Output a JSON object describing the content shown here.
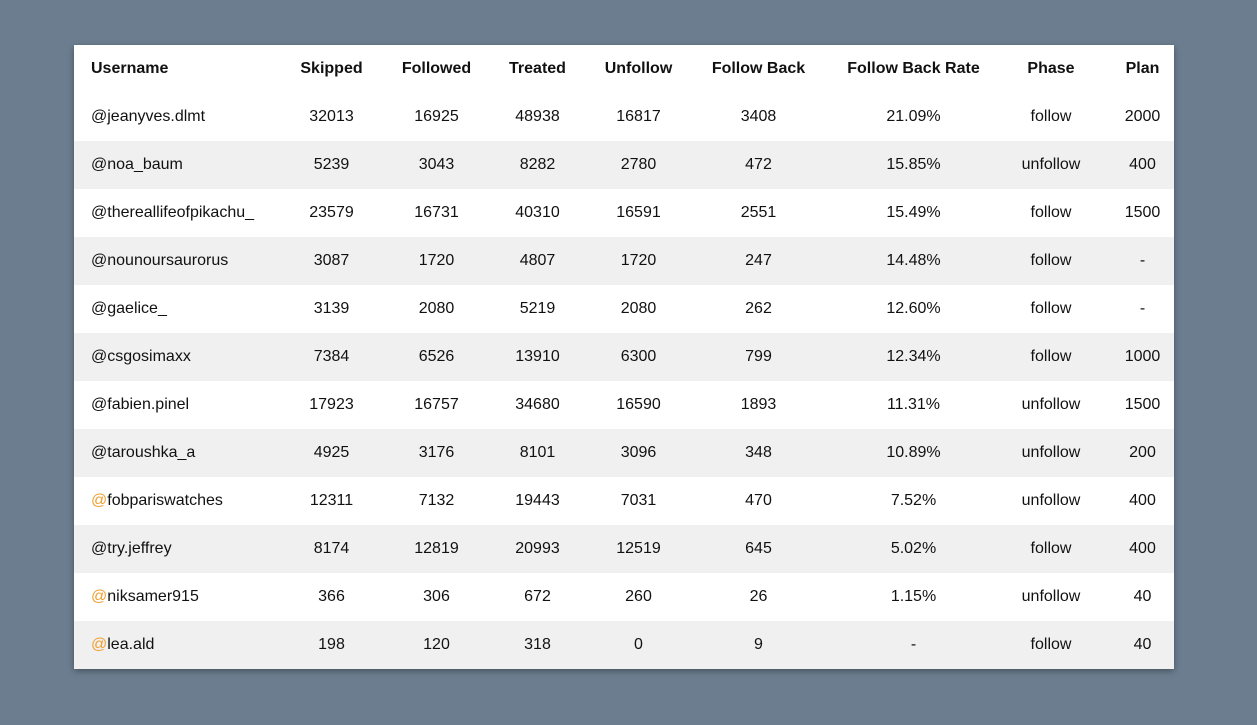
{
  "table": {
    "headers": [
      "Username",
      "Skipped",
      "Followed",
      "Treated",
      "Unfollow",
      "Follow Back",
      "Follow Back Rate",
      "Phase",
      "Plan"
    ],
    "rows": [
      {
        "at": "@",
        "at_color": "#111111",
        "name": "jeanyves.dlmt",
        "skipped": "32013",
        "followed": "16925",
        "treated": "48938",
        "unfollow": "16817",
        "follow_back": "3408",
        "rate": "21.09%",
        "phase": "follow",
        "plan": "2000"
      },
      {
        "at": "@",
        "at_color": "#111111",
        "name": "noa_baum",
        "skipped": "5239",
        "followed": "3043",
        "treated": "8282",
        "unfollow": "2780",
        "follow_back": "472",
        "rate": "15.85%",
        "phase": "unfollow",
        "plan": "400"
      },
      {
        "at": "@",
        "at_color": "#111111",
        "name": "thereallifeofpikachu_",
        "skipped": "23579",
        "followed": "16731",
        "treated": "40310",
        "unfollow": "16591",
        "follow_back": "2551",
        "rate": "15.49%",
        "phase": "follow",
        "plan": "1500"
      },
      {
        "at": "@",
        "at_color": "#111111",
        "name": "nounoursaurorus",
        "skipped": "3087",
        "followed": "1720",
        "treated": "4807",
        "unfollow": "1720",
        "follow_back": "247",
        "rate": "14.48%",
        "phase": "follow",
        "plan": "-"
      },
      {
        "at": "@",
        "at_color": "#111111",
        "name": "gaelice_",
        "skipped": "3139",
        "followed": "2080",
        "treated": "5219",
        "unfollow": "2080",
        "follow_back": "262",
        "rate": "12.60%",
        "phase": "follow",
        "plan": "-"
      },
      {
        "at": "@",
        "at_color": "#111111",
        "name": "csgosimaxx",
        "skipped": "7384",
        "followed": "6526",
        "treated": "13910",
        "unfollow": "6300",
        "follow_back": "799",
        "rate": "12.34%",
        "phase": "follow",
        "plan": "1000"
      },
      {
        "at": "@",
        "at_color": "#111111",
        "name": "fabien.pinel",
        "skipped": "17923",
        "followed": "16757",
        "treated": "34680",
        "unfollow": "16590",
        "follow_back": "1893",
        "rate": "11.31%",
        "phase": "unfollow",
        "plan": "1500"
      },
      {
        "at": "@",
        "at_color": "#111111",
        "name": "taroushka_a",
        "skipped": "4925",
        "followed": "3176",
        "treated": "8101",
        "unfollow": "3096",
        "follow_back": "348",
        "rate": "10.89%",
        "phase": "unfollow",
        "plan": "200"
      },
      {
        "at": "@",
        "at_color": "#f0a030",
        "name": "fobpariswatches",
        "skipped": "12311",
        "followed": "7132",
        "treated": "19443",
        "unfollow": "7031",
        "follow_back": "470",
        "rate": "7.52%",
        "phase": "unfollow",
        "plan": "400"
      },
      {
        "at": "@",
        "at_color": "#111111",
        "name": "try.jeffrey",
        "skipped": "8174",
        "followed": "12819",
        "treated": "20993",
        "unfollow": "12519",
        "follow_back": "645",
        "rate": "5.02%",
        "phase": "follow",
        "plan": "400"
      },
      {
        "at": "@",
        "at_color": "#f0a030",
        "name": "niksamer915",
        "skipped": "366",
        "followed": "306",
        "treated": "672",
        "unfollow": "260",
        "follow_back": "26",
        "rate": "1.15%",
        "phase": "unfollow",
        "plan": "40"
      },
      {
        "at": "@",
        "at_color": "#f0a030",
        "name": "lea.ald",
        "skipped": "198",
        "followed": "120",
        "treated": "318",
        "unfollow": "0",
        "follow_back": "9",
        "rate": "-",
        "phase": "follow",
        "plan": "40"
      }
    ]
  },
  "colors": {
    "background": "#6b7d8f",
    "card": "#ffffff",
    "row_alt": "#f0f0f0",
    "accent_orange": "#f0a030"
  }
}
